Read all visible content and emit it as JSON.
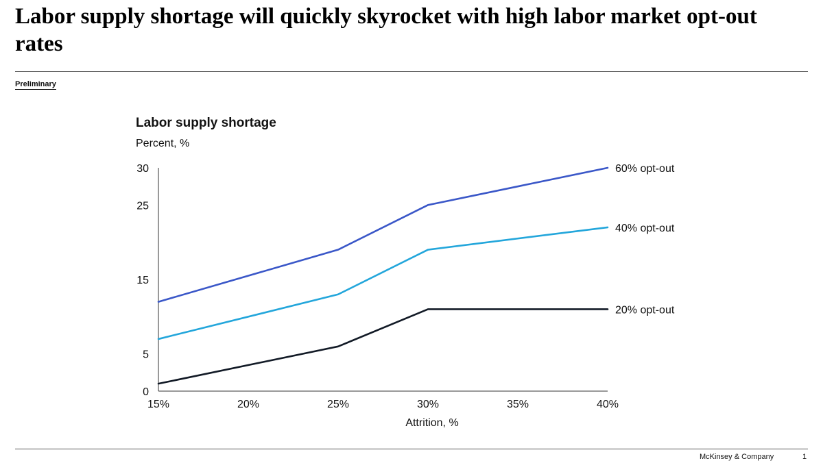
{
  "page": {
    "title": "Labor supply shortage will quickly skyrocket with high labor market opt-out rates",
    "tag": "Preliminary",
    "footer_brand": "McKinsey & Company",
    "page_number": "1"
  },
  "chart_data": {
    "type": "line",
    "title": "Labor supply shortage",
    "ylabel": "Percent, %",
    "xlabel": "Attrition, %",
    "x": [
      15,
      25,
      30,
      40
    ],
    "x_ticks": [
      15,
      20,
      25,
      30,
      35,
      40
    ],
    "x_tick_labels": [
      "15%",
      "20%",
      "25%",
      "30%",
      "35%",
      "40%"
    ],
    "y_ticks": [
      0,
      5,
      15,
      25,
      30
    ],
    "y_tick_labels": [
      "0",
      "5",
      "15",
      "25",
      "30"
    ],
    "xlim": [
      15,
      40
    ],
    "ylim": [
      0,
      30
    ],
    "grid": false,
    "legend": "inline-right",
    "series": [
      {
        "name": "60% opt-out",
        "color": "#3a57c8",
        "values": [
          12,
          19,
          25,
          30
        ]
      },
      {
        "name": "40% opt-out",
        "color": "#23a6db",
        "values": [
          7,
          13,
          19,
          22
        ]
      },
      {
        "name": "20% opt-out",
        "color": "#121a26",
        "values": [
          1,
          6,
          11,
          11
        ]
      }
    ]
  }
}
